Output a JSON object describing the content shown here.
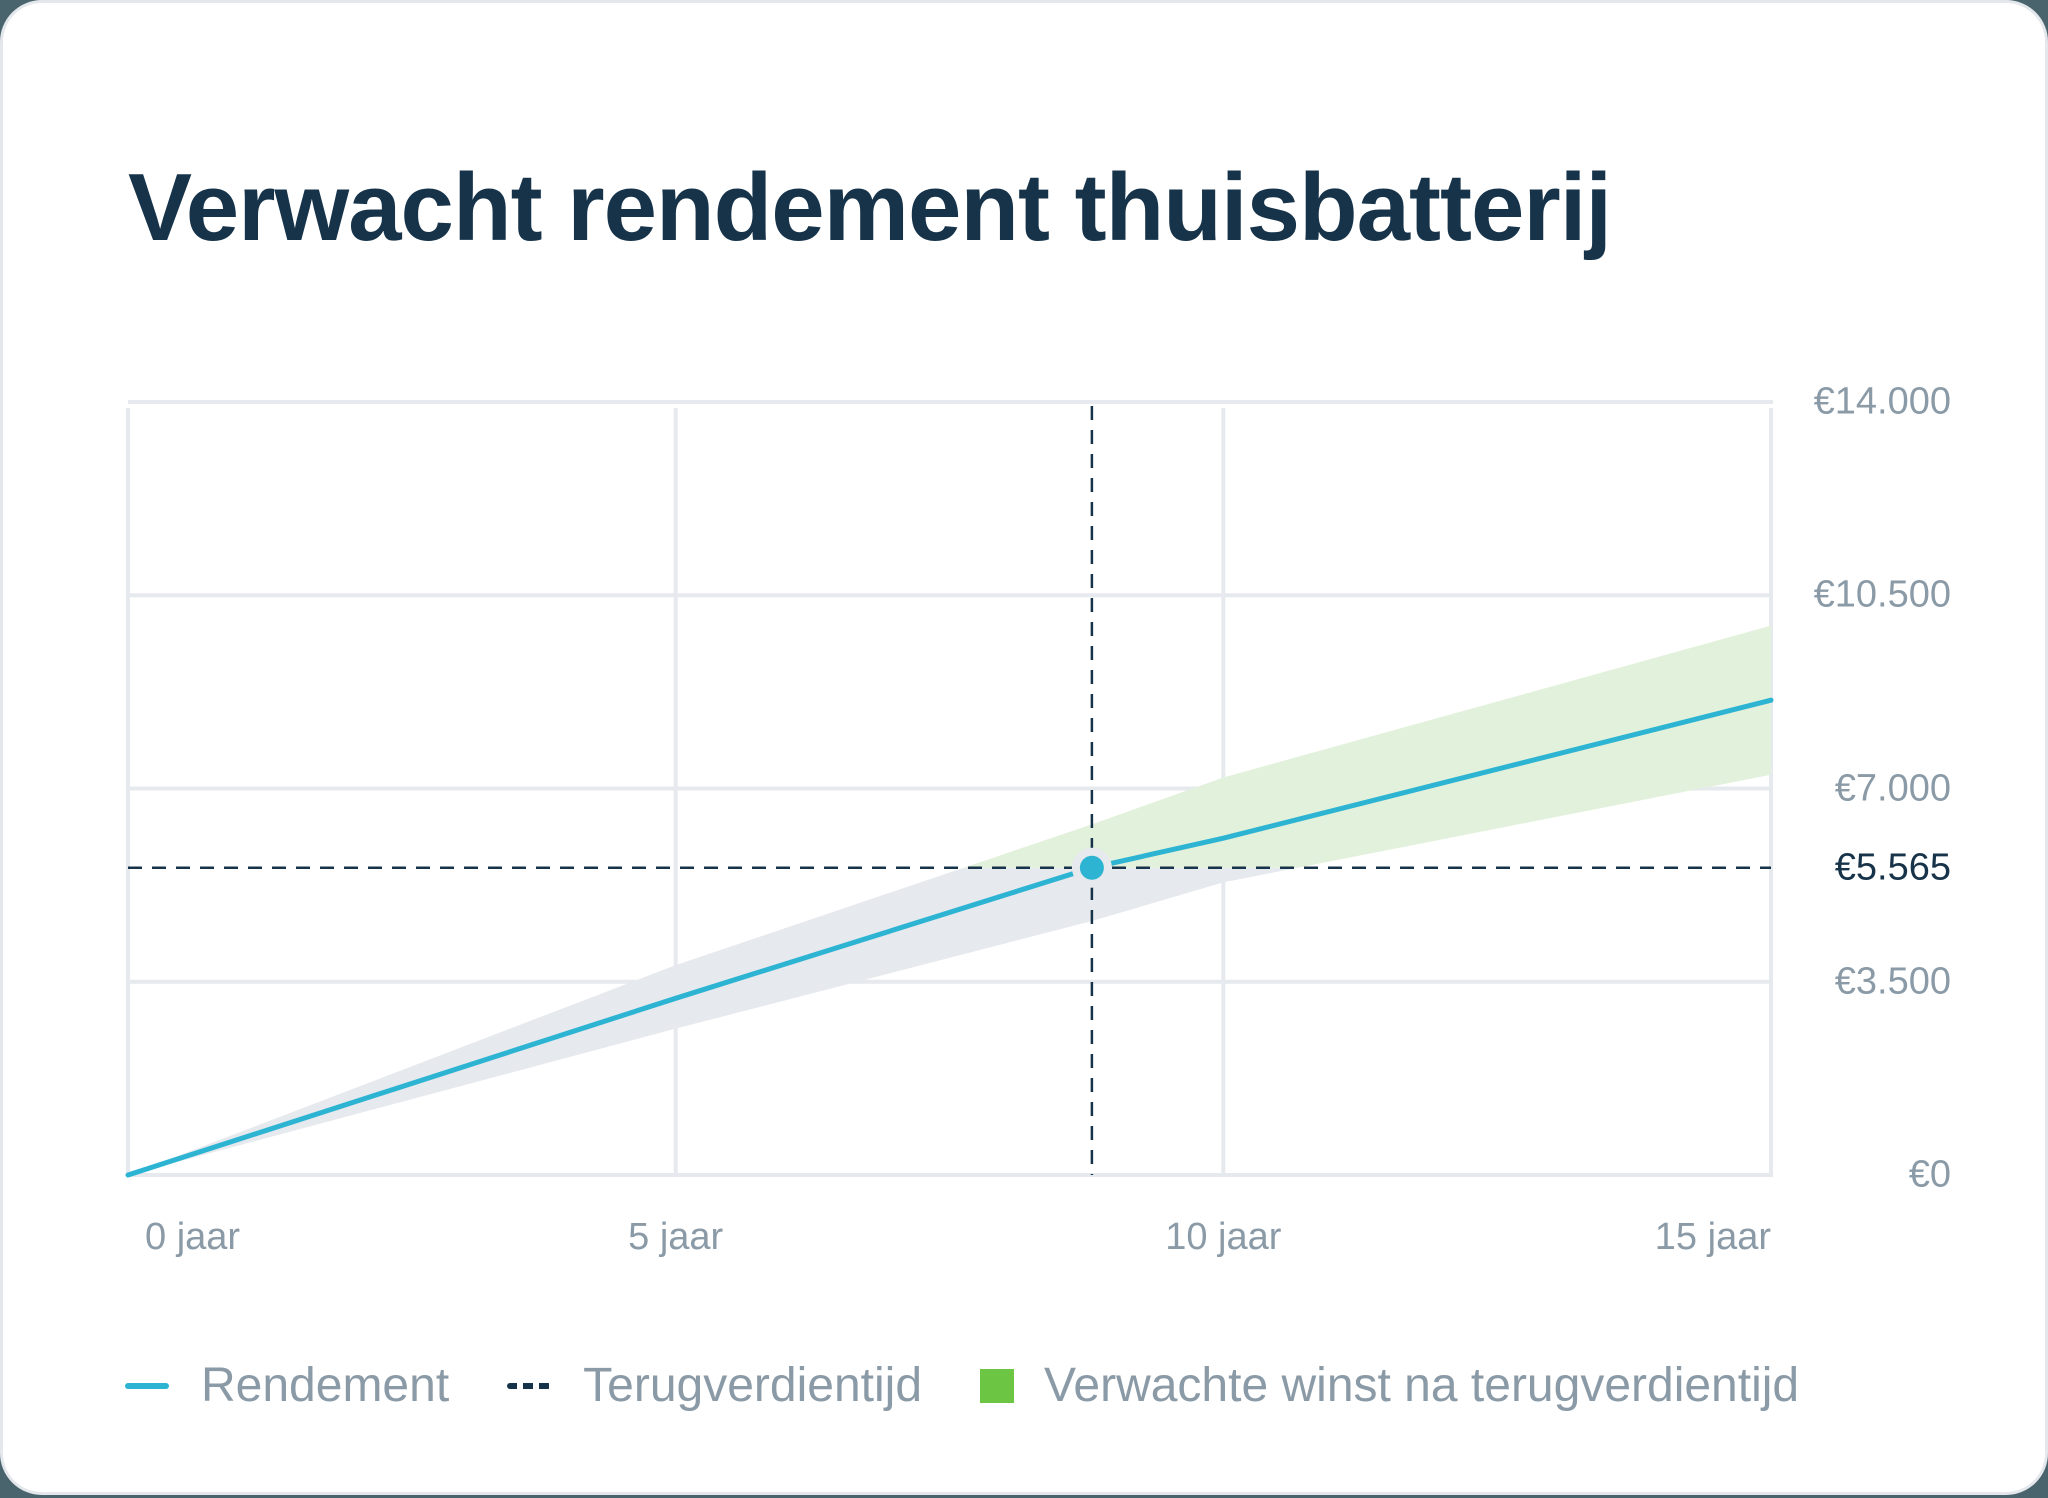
{
  "title": "Verwacht rendement thuisbatterij",
  "colors": {
    "background": "#4a646e",
    "title": "#17334a",
    "line": "#2db4d2",
    "band_before": "#e6e9ed",
    "band_after": "#e2f1db",
    "legend_green": "#6cc644",
    "grid": "#e6e9ee",
    "axis_text": "#8a9aa6",
    "highlight_text": "#17334a"
  },
  "y_axis": {
    "ticks": [
      {
        "value": 14000,
        "label": "€14.000"
      },
      {
        "value": 10500,
        "label": "€10.500"
      },
      {
        "value": 7000,
        "label": "€7.000"
      },
      {
        "value": 3500,
        "label": "€3.500"
      },
      {
        "value": 0,
        "label": "€0"
      }
    ],
    "highlight": {
      "value": 5565,
      "label": "€5.565"
    }
  },
  "x_axis": {
    "ticks": [
      {
        "value": 0,
        "label": "0 jaar"
      },
      {
        "value": 5,
        "label": "5 jaar"
      },
      {
        "value": 10,
        "label": "10 jaar"
      },
      {
        "value": 15,
        "label": "15 jaar"
      }
    ]
  },
  "legend": {
    "rendement": "Rendement",
    "terugverdientijd": "Terugverdientijd",
    "winst": "Verwachte winst na terugverdientijd"
  },
  "chart_data": {
    "type": "line",
    "title": "Verwacht rendement thuisbatterij",
    "xlabel": "jaar",
    "ylabel": "€",
    "xlim": [
      0,
      15
    ],
    "ylim": [
      0,
      14000
    ],
    "grid": true,
    "legend_position": "bottom",
    "x": [
      0,
      5,
      8.8,
      10,
      15
    ],
    "series": [
      {
        "name": "Rendement",
        "values": [
          0,
          3200,
          5565,
          6100,
          8600
        ]
      },
      {
        "name": "Upper bound",
        "values": [
          0,
          3800,
          6350,
          7200,
          9950
        ]
      },
      {
        "name": "Lower bound",
        "values": [
          0,
          2650,
          4600,
          5300,
          7250
        ]
      }
    ],
    "payback": {
      "label": "Terugverdientijd",
      "x": 8.8,
      "y": 5565
    },
    "shaded_region": {
      "label": "Verwachte winst na terugverdientijd",
      "above_y": 5565
    }
  }
}
